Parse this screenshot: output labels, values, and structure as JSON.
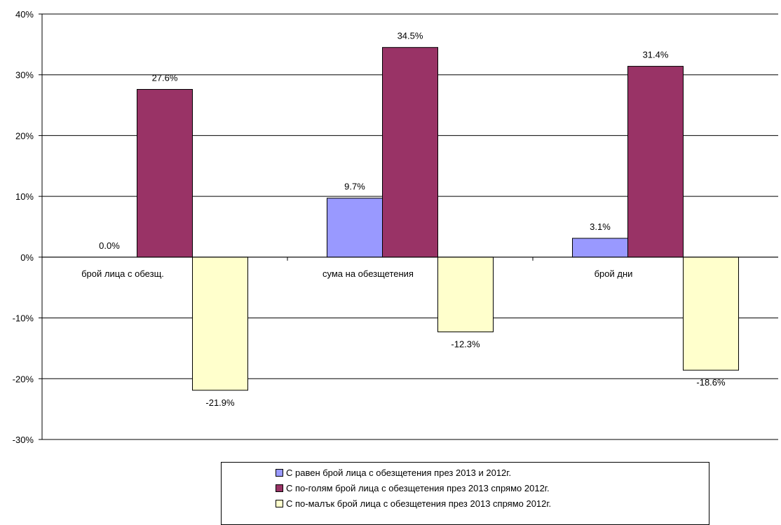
{
  "chart_data": {
    "type": "bar",
    "categories": [
      "брой лица с обезщ.",
      "сума на обезщетения",
      "брой дни"
    ],
    "series": [
      {
        "name": "С равен брой лица с обезщетения през 2013 и 2012г.",
        "values": [
          0.0,
          9.7,
          3.1
        ],
        "color": "#9999FF"
      },
      {
        "name": "С по-голям брой лица с обезщетения през 2013 спрямо 2012г.",
        "values": [
          27.6,
          34.5,
          31.4
        ],
        "color": "#993366"
      },
      {
        "name": "С по-малък брой лица с обезщетения през 2013 спрямо 2012г.",
        "values": [
          -21.9,
          -12.3,
          -18.6
        ],
        "color": "#FFFFCC"
      }
    ],
    "data_labels": [
      [
        "0.0%",
        "9.7%",
        "3.1%"
      ],
      [
        "27.6%",
        "34.5%",
        "31.4%"
      ],
      [
        "-21.9%",
        "-12.3%",
        "-18.6%"
      ]
    ],
    "y_ticks": [
      "40%",
      "30%",
      "20%",
      "10%",
      "0%",
      "-10%",
      "-20%",
      "-30%"
    ],
    "y_tick_values": [
      40,
      30,
      20,
      10,
      0,
      -10,
      -20,
      -30
    ],
    "ylim": [
      -30,
      40
    ],
    "grid": true,
    "legend_position": "bottom",
    "title": "",
    "xlabel": "",
    "ylabel": ""
  }
}
